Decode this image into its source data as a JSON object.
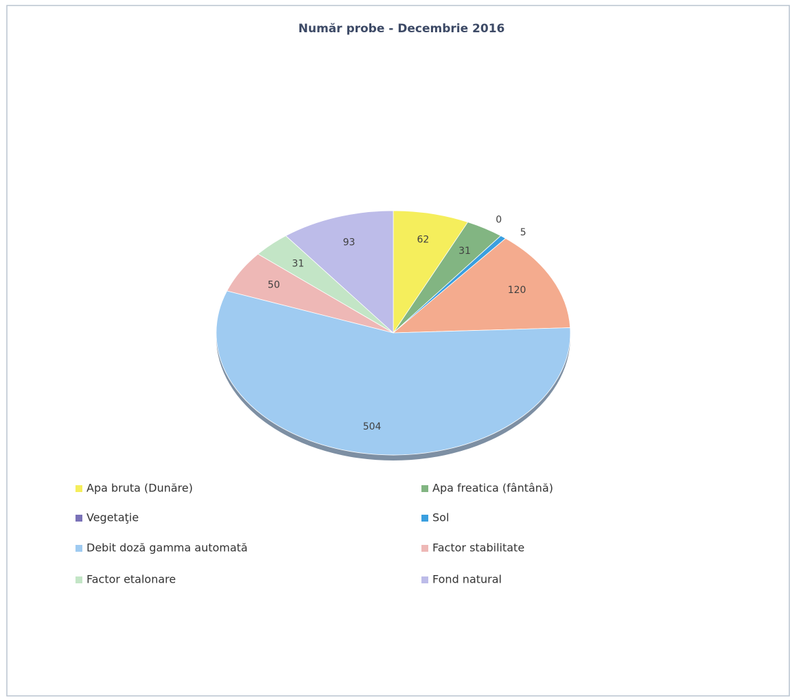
{
  "chart_data": {
    "type": "pie",
    "title": "Număr probe - Decembrie 2016",
    "categories": [
      "Apa bruta (Dunăre)",
      "Apa freatica (fântână)",
      "Vegetaţie",
      "Sol",
      null,
      "Debit doză gamma automată",
      "Factor stabilitate",
      "Factor etalonare",
      "Fond natural"
    ],
    "values": [
      62,
      31,
      0,
      5,
      120,
      504,
      50,
      31,
      93
    ],
    "colors": [
      "#f5ee5c",
      "#82b582",
      "#7a72b8",
      "#3a9fdf",
      "#f4ab8e",
      "#9fcbf1",
      "#eeb8b6",
      "#c3e5c6",
      "#bdbce9"
    ],
    "legend": "bottom"
  }
}
